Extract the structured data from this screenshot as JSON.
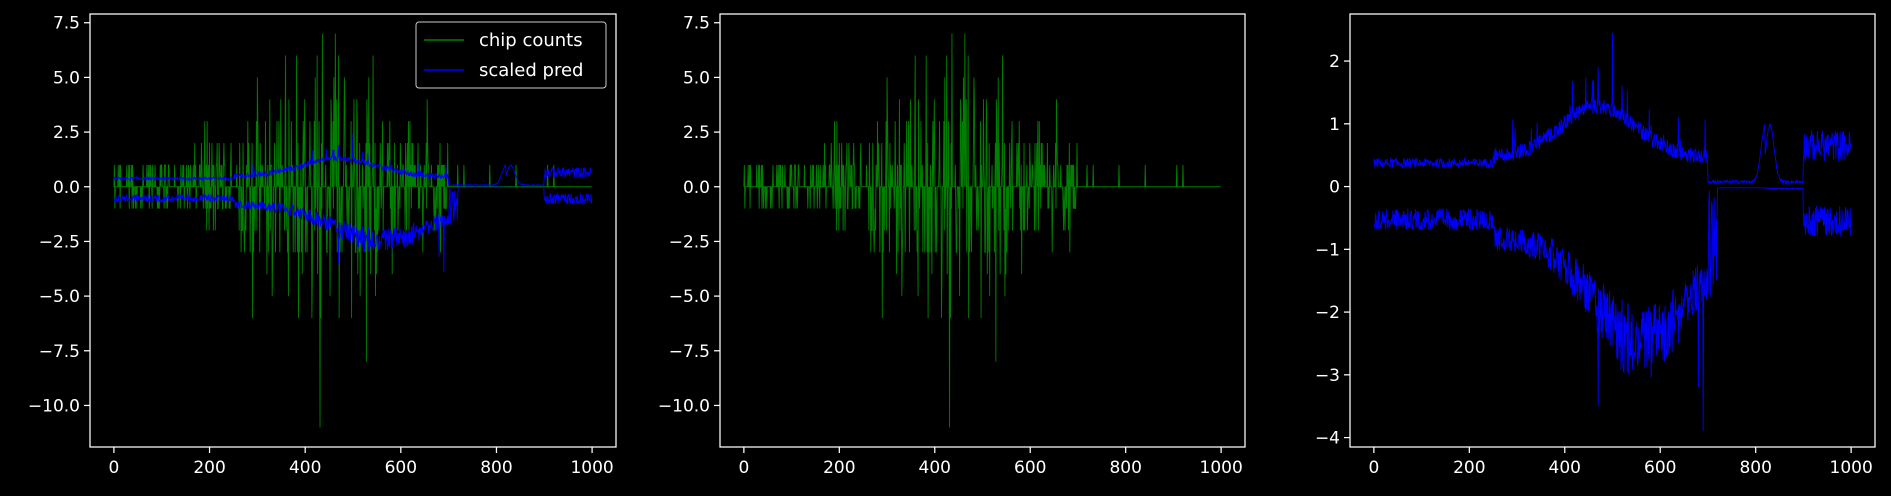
{
  "colors": {
    "background": "#000000",
    "axes": "#ffffff",
    "counts": "#008000",
    "pred": "#0000ff"
  },
  "chart_data": [
    {
      "type": "line",
      "title": "",
      "xlabel": "",
      "ylabel": "",
      "xlim": [
        -50,
        1050
      ],
      "ylim": [
        -11.9,
        7.9
      ],
      "x_ticks": [
        0,
        200,
        400,
        600,
        800,
        1000
      ],
      "x_tick_labels": [
        "0",
        "200",
        "400",
        "600",
        "800",
        "1000"
      ],
      "y_ticks": [
        7.5,
        5.0,
        2.5,
        0.0,
        -2.5,
        -5.0,
        -7.5,
        -10.0
      ],
      "y_tick_labels": [
        "7.5",
        "5.0",
        "2.5",
        "0.0",
        "−2.5",
        "−5.0",
        "−7.5",
        "−10.0"
      ],
      "legend": {
        "position": "top-right",
        "entries": [
          "chip counts",
          "scaled pred"
        ]
      },
      "series": [
        {
          "name": "chip counts",
          "color": "#008000",
          "x_range": [
            0,
            1000
          ],
          "n_points": 1000,
          "kind": "integer counts (spiky)",
          "max": 7,
          "min": -11
        },
        {
          "name": "scaled pred",
          "color": "#0000ff",
          "x_range": [
            0,
            1000
          ],
          "n_points": 1000,
          "kind": "two bands (positive and negative)",
          "max": 1.7,
          "min": -3.0
        }
      ]
    },
    {
      "type": "line",
      "title": "",
      "xlabel": "",
      "ylabel": "",
      "xlim": [
        -50,
        1050
      ],
      "ylim": [
        -11.9,
        7.9
      ],
      "x_ticks": [
        0,
        200,
        400,
        600,
        800,
        1000
      ],
      "x_tick_labels": [
        "0",
        "200",
        "400",
        "600",
        "800",
        "1000"
      ],
      "y_ticks": [
        7.5,
        5.0,
        2.5,
        0.0,
        -2.5,
        -5.0,
        -7.5,
        -10.0
      ],
      "y_tick_labels": [
        "7.5",
        "5.0",
        "2.5",
        "0.0",
        "−2.5",
        "−5.0",
        "−7.5",
        "−10.0"
      ],
      "series": [
        {
          "color": "#008000",
          "x_range": [
            0,
            1000
          ],
          "n_points": 1000,
          "kind": "integer counts (spiky)",
          "max": 7,
          "min": -11
        }
      ]
    },
    {
      "type": "line",
      "title": "",
      "xlabel": "",
      "ylabel": "",
      "xlim": [
        -50,
        1050
      ],
      "ylim": [
        -4.15,
        2.75
      ],
      "x_ticks": [
        0,
        200,
        400,
        600,
        800,
        1000
      ],
      "x_tick_labels": [
        "0",
        "200",
        "400",
        "600",
        "800",
        "1000"
      ],
      "y_ticks": [
        2,
        1,
        0,
        -1,
        -2,
        -3,
        -4
      ],
      "y_tick_labels": [
        "2",
        "1",
        "0",
        "−1",
        "−2",
        "−3",
        "−4"
      ],
      "series": [
        {
          "color": "#0000ff",
          "x_range": [
            0,
            1000
          ],
          "n_points": 1000,
          "kind": "two bands (positive and negative)",
          "max": 2.45,
          "min": -3.9
        }
      ]
    }
  ]
}
